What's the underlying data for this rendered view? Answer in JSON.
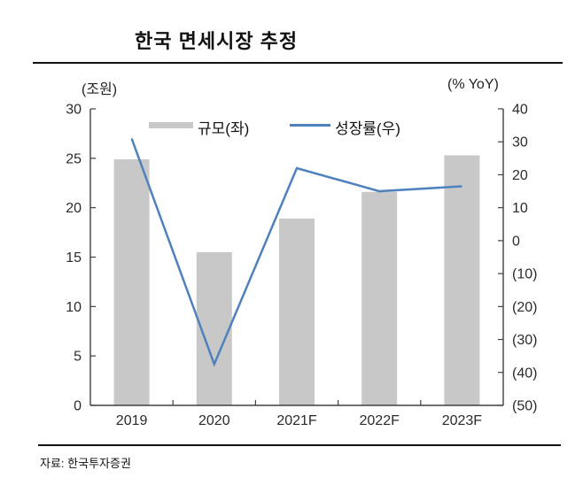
{
  "title": "한국 면세시장 추정",
  "source": "자료:  한국투자증권",
  "colors": {
    "bar": "#c8c8c8",
    "line": "#4f81bd",
    "axis": "#404040",
    "tick_text": "#2b2b2b",
    "rule": "#111111"
  },
  "chart_data": {
    "type": "bar+line combo",
    "title": "한국 면세시장 추정",
    "categories": [
      "2019",
      "2020",
      "2021F",
      "2022F",
      "2023F"
    ],
    "series": [
      {
        "name": "규모(좌)",
        "type": "bar",
        "axis": "left",
        "values": [
          24.9,
          15.5,
          18.9,
          21.6,
          25.3
        ]
      },
      {
        "name": "성장률(우)",
        "type": "line",
        "axis": "right",
        "values": [
          31,
          -37.5,
          22,
          15,
          16.5
        ]
      }
    ],
    "left_axis": {
      "label": "(조원)",
      "min": 0,
      "max": 30,
      "ticks": [
        30,
        25,
        20,
        15,
        10,
        5,
        0
      ],
      "tick_labels": [
        "30",
        "25",
        "20",
        "15",
        "10",
        "5",
        "0"
      ]
    },
    "right_axis": {
      "label": "(% YoY)",
      "min": -50,
      "max": 40,
      "ticks": [
        40,
        30,
        20,
        10,
        0,
        -10,
        -20,
        -30,
        -40,
        -50
      ],
      "tick_labels": [
        "40",
        "30",
        "20",
        "10",
        "0",
        "(10)",
        "(20)",
        "(30)",
        "(40)",
        "(50)"
      ]
    },
    "grid": false,
    "legend_position": "top-center"
  }
}
